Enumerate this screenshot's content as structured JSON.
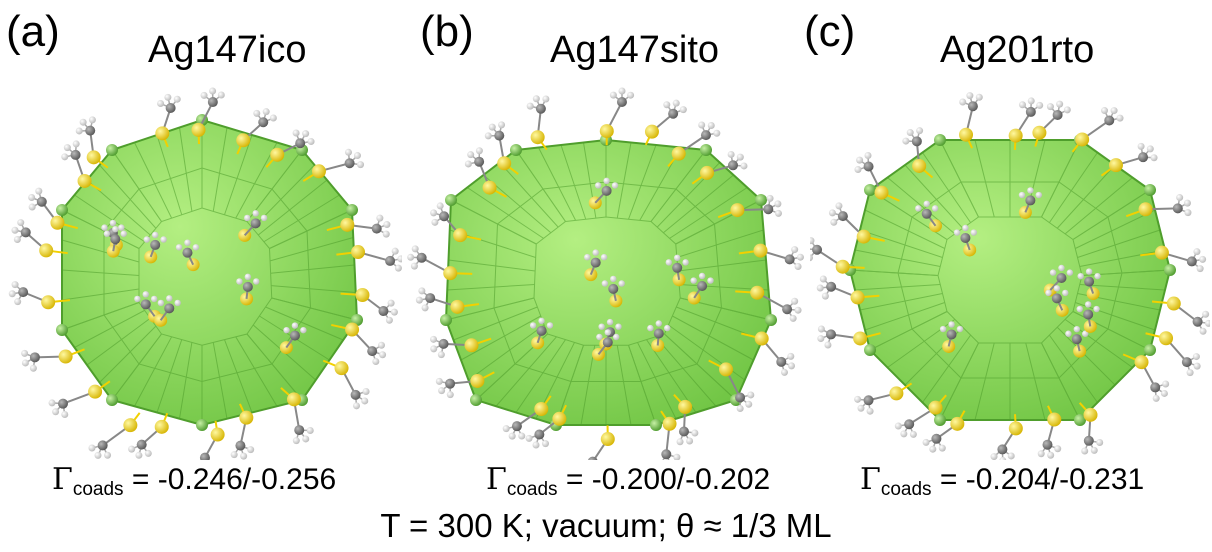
{
  "panels": [
    {
      "label": "(a)",
      "title": "Ag147ico",
      "gamma_symbol": "Γ",
      "gamma_sub": "coads",
      "gamma_value": " = -0.246/-0.256"
    },
    {
      "label": "(b)",
      "title": "Ag147sito",
      "gamma_symbol": "Γ",
      "gamma_sub": "coads",
      "gamma_value": " = -0.200/-0.202"
    },
    {
      "label": "(c)",
      "title": "Ag201rto",
      "gamma_symbol": "Γ",
      "gamma_sub": "coads",
      "gamma_value": " = -0.204/-0.231"
    }
  ],
  "footer": "T = 300 K; vacuum; θ ≈ 1/3 ML",
  "colors": {
    "facet": "#93dd61",
    "facet_edge": "#4f9e2c",
    "silver_atom": "#7dc957",
    "sulfur_atom": "#f2d000",
    "carbon_atom": "#7a7a7a",
    "hydrogen_atom": "#ececec"
  }
}
